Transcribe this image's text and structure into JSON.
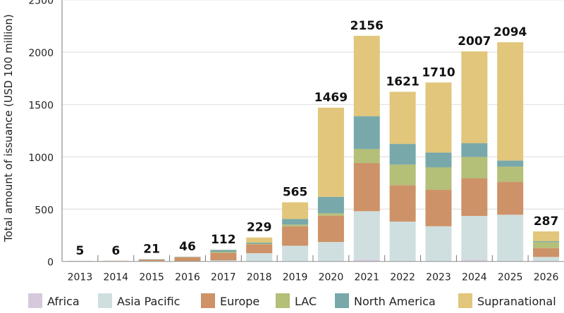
{
  "chart_data": {
    "type": "bar",
    "stacked": true,
    "title": "",
    "xlabel": "",
    "ylabel": "Total amount of issuance (USD 100 million)",
    "ylim": [
      0,
      2500
    ],
    "yticks": [
      0,
      500,
      1000,
      1500,
      2000,
      2500
    ],
    "grid": true,
    "legend_position": "bottom",
    "categories": [
      "2013",
      "2014",
      "2015",
      "2016",
      "2017",
      "2018",
      "2019",
      "2020",
      "2021",
      "2022",
      "2023",
      "2024",
      "2025",
      "2026"
    ],
    "totals": [
      5,
      6,
      21,
      46,
      112,
      229,
      565,
      1469,
      2156,
      1621,
      1710,
      2007,
      2094,
      287
    ],
    "series": [
      {
        "name": "Africa",
        "color": "#d6c9dc",
        "values": [
          0,
          0,
          0,
          0,
          0,
          0,
          0,
          0,
          16,
          0,
          0,
          16,
          7,
          0
        ]
      },
      {
        "name": "Asia Pacific",
        "color": "#cfdfdf",
        "values": [
          0,
          0,
          0,
          0,
          11,
          79,
          150,
          186,
          464,
          381,
          336,
          419,
          439,
          43
        ]
      },
      {
        "name": "Europe",
        "color": "#cd9267",
        "values": [
          5,
          6,
          17,
          40,
          72,
          85,
          186,
          251,
          459,
          348,
          350,
          359,
          314,
          85
        ]
      },
      {
        "name": "LAC",
        "color": "#b4bf78",
        "values": [
          0,
          0,
          0,
          0,
          7,
          5,
          16,
          23,
          135,
          197,
          213,
          204,
          146,
          56
        ]
      },
      {
        "name": "North America",
        "color": "#78a8aa",
        "values": [
          0,
          0,
          4,
          4,
          20,
          11,
          54,
          157,
          314,
          197,
          141,
          132,
          58,
          9
        ]
      },
      {
        "name": "Supranational",
        "color": "#e1c67c",
        "values": [
          0,
          0,
          0,
          2,
          2,
          49,
          159,
          852,
          768,
          498,
          670,
          877,
          1130,
          94
        ]
      }
    ]
  }
}
